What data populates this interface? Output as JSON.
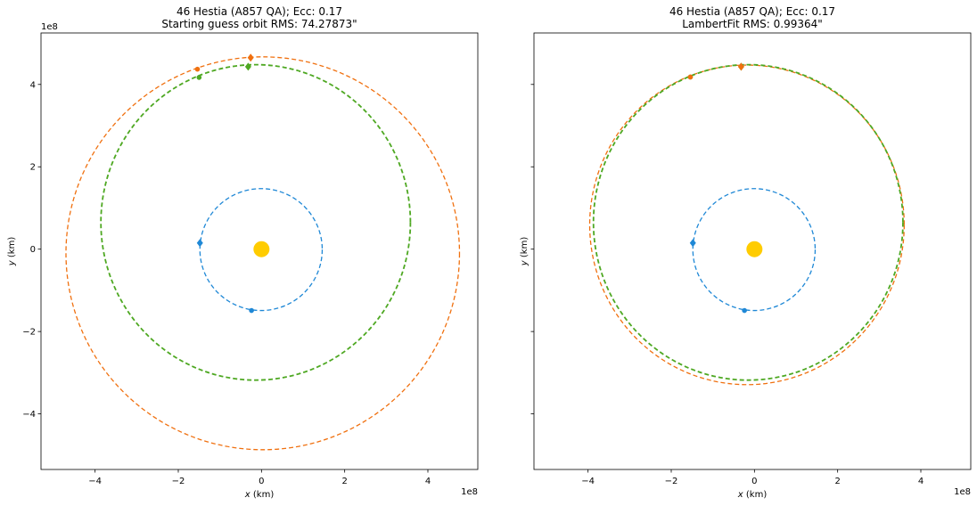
{
  "chart_data": [
    {
      "type": "line",
      "title_line1": "46 Hestia (A857 QA); Ecc: 0.17",
      "title_line2": "Starting guess orbit RMS: 74.27873\"",
      "xlabel_var": "x",
      "xlabel_unit": " (km)",
      "ylabel_var": "y",
      "ylabel_unit": " (km)",
      "offset_x": "1e8",
      "offset_y": "1e8",
      "xlim": [
        -5.3,
        5.2
      ],
      "ylim": [
        -5.35,
        5.25
      ],
      "xticks": [
        -4,
        -2,
        0,
        2,
        4
      ],
      "yticks": [
        -4,
        -2,
        0,
        2,
        4
      ],
      "show_ytick_labels": true,
      "orbits": [
        {
          "name": "earth",
          "color": "#1f88d6",
          "cx": -0.01,
          "cy": -0.01,
          "rx": 1.47,
          "ry": 1.48,
          "width": 1.3
        },
        {
          "name": "guess",
          "color": "#f0700f",
          "cx": 0.03,
          "cy": -0.1,
          "rx": 4.73,
          "ry": 4.77,
          "width": 1.3
        },
        {
          "name": "true",
          "color": "#4ea822",
          "cx": -0.14,
          "cy": 0.65,
          "rx": 3.72,
          "ry": 3.83,
          "width": 1.8
        }
      ],
      "markers": [
        {
          "color": "#f0700f",
          "x": -0.26,
          "y": 4.65,
          "shape": "diamond"
        },
        {
          "color": "#f0700f",
          "x": -1.54,
          "y": 4.37,
          "shape": "dot"
        },
        {
          "color": "#4ea822",
          "x": -0.32,
          "y": 4.43,
          "shape": "diamond"
        },
        {
          "color": "#4ea822",
          "x": -1.5,
          "y": 4.17,
          "shape": "dot"
        },
        {
          "color": "#1f88d6",
          "x": -1.48,
          "y": 0.15,
          "shape": "diamond"
        },
        {
          "color": "#1f88d6",
          "x": -0.24,
          "y": -1.49,
          "shape": "dot"
        },
        {
          "color": "#ffcc00",
          "x": 0,
          "y": 0,
          "shape": "sun"
        }
      ]
    },
    {
      "type": "line",
      "title_line1": "46 Hestia (A857 QA); Ecc: 0.17",
      "title_line2": "LambertFit RMS: 0.99364\"",
      "xlabel_var": "x",
      "xlabel_unit": " (km)",
      "ylabel_var": "y",
      "ylabel_unit": " (km)",
      "offset_x": "1e8",
      "xlim": [
        -5.3,
        5.2
      ],
      "ylim": [
        -5.35,
        5.25
      ],
      "xticks": [
        -4,
        -2,
        0,
        2,
        4
      ],
      "yticks": [
        -4,
        -2,
        0,
        2,
        4
      ],
      "show_ytick_labels": false,
      "orbits": [
        {
          "name": "earth",
          "color": "#1f88d6",
          "cx": -0.01,
          "cy": -0.01,
          "rx": 1.47,
          "ry": 1.48,
          "width": 1.3
        },
        {
          "name": "fit",
          "color": "#f0700f",
          "cx": -0.18,
          "cy": 0.59,
          "rx": 3.78,
          "ry": 3.88,
          "width": 1.3
        },
        {
          "name": "true",
          "color": "#4ea822",
          "cx": -0.15,
          "cy": 0.65,
          "rx": 3.72,
          "ry": 3.83,
          "width": 1.8
        }
      ],
      "markers": [
        {
          "color": "#4ea822",
          "x": -0.32,
          "y": 4.43,
          "shape": "diamond"
        },
        {
          "color": "#f0700f",
          "x": -0.32,
          "y": 4.43,
          "shape": "diamond"
        },
        {
          "color": "#4ea822",
          "x": -1.54,
          "y": 4.18,
          "shape": "dot"
        },
        {
          "color": "#f0700f",
          "x": -1.54,
          "y": 4.18,
          "shape": "dot"
        },
        {
          "color": "#1f88d6",
          "x": -1.48,
          "y": 0.15,
          "shape": "diamond"
        },
        {
          "color": "#1f88d6",
          "x": -0.24,
          "y": -1.49,
          "shape": "dot"
        },
        {
          "color": "#ffcc00",
          "x": 0,
          "y": 0,
          "shape": "sun"
        }
      ]
    }
  ]
}
